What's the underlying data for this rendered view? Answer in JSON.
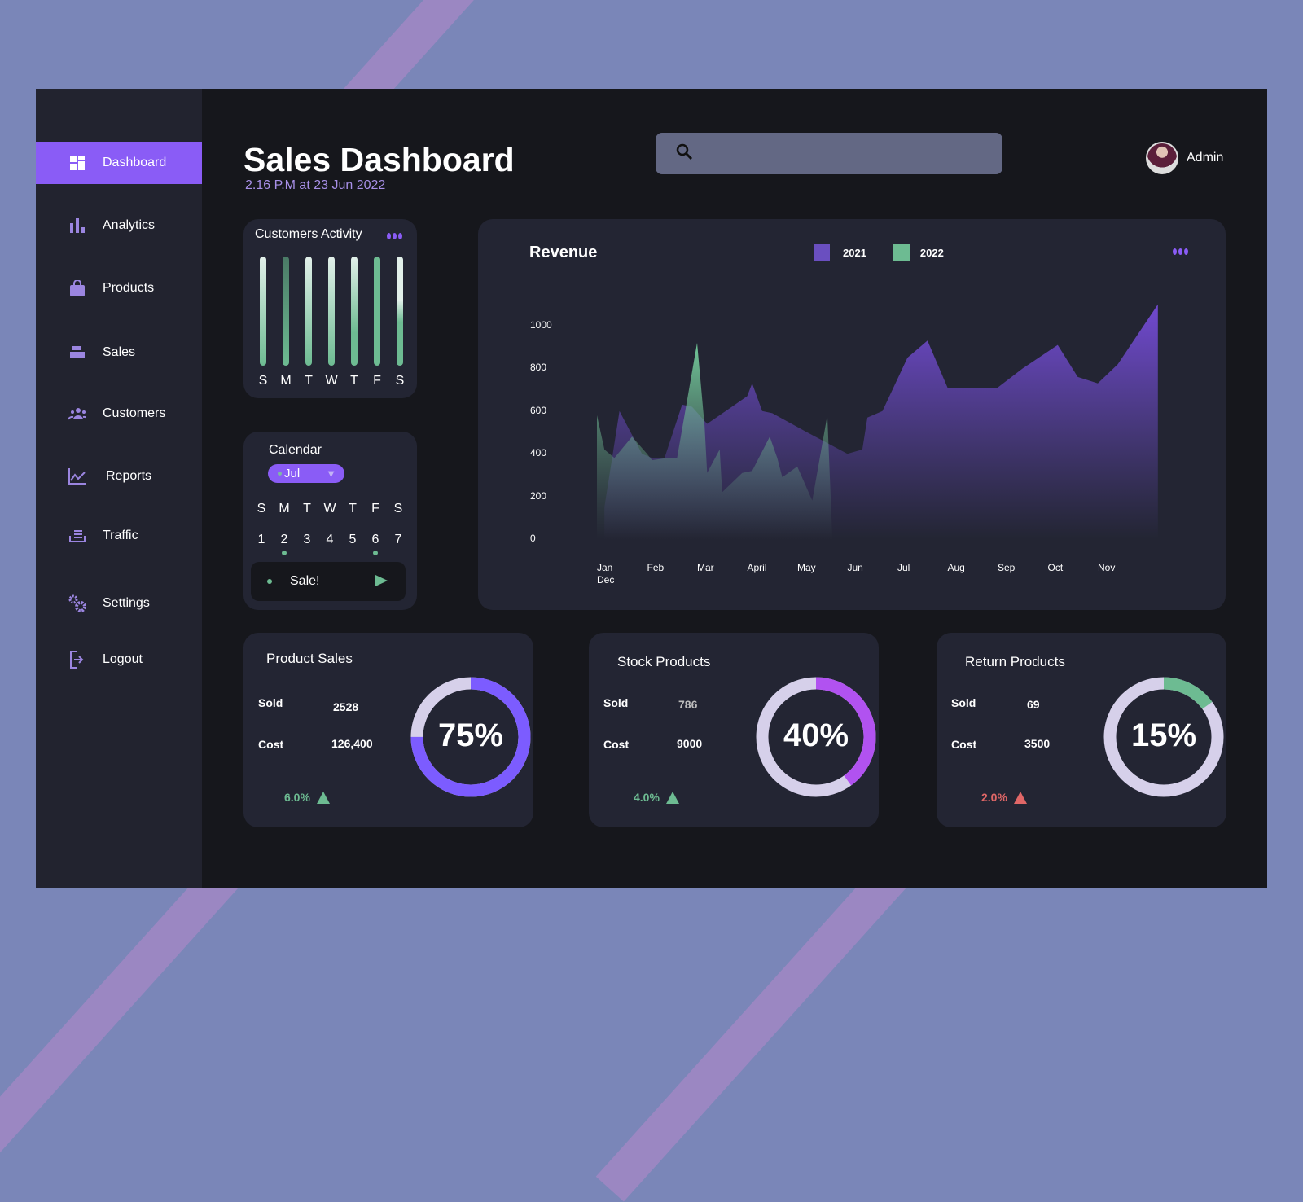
{
  "sidebar": {
    "items": [
      {
        "label": "Dashboard",
        "icon": "dashboard-icon",
        "active": true
      },
      {
        "label": "Analytics",
        "icon": "bar-chart-icon"
      },
      {
        "label": "Products",
        "icon": "shopping-bag-icon"
      },
      {
        "label": "Sales",
        "icon": "register-icon"
      },
      {
        "label": "Customers",
        "icon": "users-icon"
      },
      {
        "label": "Reports",
        "icon": "line-chart-icon"
      },
      {
        "label": "Traffic",
        "icon": "tray-icon"
      },
      {
        "label": "Settings",
        "icon": "gears-icon"
      },
      {
        "label": "Logout",
        "icon": "logout-icon"
      }
    ]
  },
  "header": {
    "title": "Sales Dashboard",
    "subtitle": "2.16 P.M at 23 Jun 2022",
    "search_placeholder": "",
    "user": "Admin"
  },
  "activity": {
    "title": "Customers Activity",
    "days": [
      "S",
      "M",
      "T",
      "W",
      "T",
      "F",
      "S"
    ]
  },
  "calendar": {
    "title": "Calendar",
    "month": "Jul",
    "days": [
      "S",
      "M",
      "T",
      "W",
      "T",
      "F",
      "S"
    ],
    "dates": [
      "1",
      "2",
      "3",
      "4",
      "5",
      "6",
      "7"
    ],
    "marked": [
      "2",
      "6"
    ],
    "event": "Sale!"
  },
  "colors": {
    "accent": "#8a5cf6",
    "series2021": "#6a4fc0",
    "series2022": "#6dbb92",
    "down": "#e06767",
    "up": "#6dbb92"
  },
  "chart_data": {
    "type": "area",
    "title": "Revenue",
    "ylim": [
      0,
      1000
    ],
    "yticks": [
      0,
      200,
      400,
      600,
      800,
      1000
    ],
    "xticks": [
      "Jan",
      "Feb",
      "Mar",
      "April",
      "May",
      "Jun",
      "Jul",
      "Aug",
      "Sep",
      "Oct",
      "Nov"
    ],
    "xextra": "Dec",
    "grid": false,
    "legend": "top-center",
    "series": [
      {
        "name": "2021",
        "color": "#6a4fc0",
        "points": [
          [
            0.15,
            150
          ],
          [
            0.45,
            600
          ],
          [
            0.9,
            400
          ],
          [
            1.1,
            380
          ],
          [
            1.35,
            380
          ],
          [
            1.7,
            630
          ],
          [
            1.9,
            620
          ],
          [
            2.2,
            540
          ],
          [
            3.0,
            670
          ],
          [
            3.1,
            730
          ],
          [
            3.3,
            600
          ],
          [
            3.5,
            590
          ],
          [
            4.2,
            500
          ],
          [
            5.0,
            400
          ],
          [
            5.3,
            420
          ],
          [
            5.4,
            570
          ],
          [
            5.7,
            600
          ],
          [
            6.2,
            850
          ],
          [
            6.6,
            930
          ],
          [
            7.0,
            710
          ],
          [
            7.5,
            710
          ],
          [
            8.0,
            710
          ],
          [
            8.5,
            800
          ],
          [
            9.2,
            910
          ],
          [
            9.6,
            760
          ],
          [
            10.0,
            730
          ],
          [
            10.4,
            820
          ],
          [
            11.2,
            1100
          ]
        ]
      },
      {
        "name": "2022",
        "color": "#6dbb92",
        "points": [
          [
            0.0,
            580
          ],
          [
            0.15,
            420
          ],
          [
            0.35,
            380
          ],
          [
            0.7,
            480
          ],
          [
            1.0,
            400
          ],
          [
            1.1,
            370
          ],
          [
            1.4,
            380
          ],
          [
            1.6,
            380
          ],
          [
            2.0,
            920
          ],
          [
            2.15,
            530
          ],
          [
            2.2,
            310
          ],
          [
            2.45,
            420
          ],
          [
            2.5,
            220
          ],
          [
            2.9,
            310
          ],
          [
            3.1,
            320
          ],
          [
            3.45,
            480
          ],
          [
            3.6,
            380
          ],
          [
            3.7,
            290
          ],
          [
            4.0,
            340
          ],
          [
            4.3,
            180
          ],
          [
            4.6,
            580
          ],
          [
            4.7,
            0
          ]
        ]
      }
    ]
  },
  "cards": [
    {
      "title": "Product Sales",
      "sold_label": "Sold",
      "sold": "2528",
      "cost_label": "Cost",
      "cost": "126,400",
      "percent": 75,
      "percent_label": "75%",
      "trend": "6.0%",
      "trend_dir": "up",
      "color": "#7c5cff"
    },
    {
      "title": "Stock Products",
      "sold_label": "Sold",
      "sold": "786",
      "cost_label": "Cost",
      "cost": "9000",
      "percent": 40,
      "percent_label": "40%",
      "trend": "4.0%",
      "trend_dir": "up",
      "color": "#b152f0"
    },
    {
      "title": "Return Products",
      "sold_label": "Sold",
      "sold": "69",
      "cost_label": "Cost",
      "cost": "3500",
      "percent": 15,
      "percent_label": "15%",
      "trend": "2.0%",
      "trend_dir": "down",
      "color": "#6dbb92"
    }
  ]
}
